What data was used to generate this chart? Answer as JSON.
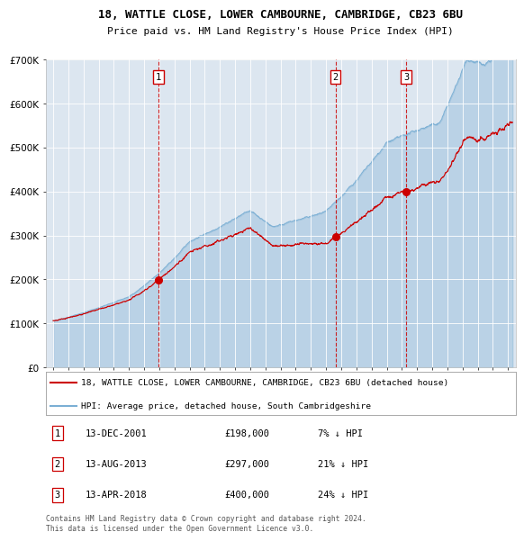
{
  "title_line1": "18, WATTLE CLOSE, LOWER CAMBOURNE, CAMBRIDGE, CB23 6BU",
  "title_line2": "Price paid vs. HM Land Registry's House Price Index (HPI)",
  "legend_label_red": "18, WATTLE CLOSE, LOWER CAMBOURNE, CAMBRIDGE, CB23 6BU (detached house)",
  "legend_label_blue": "HPI: Average price, detached house, South Cambridgeshire",
  "transactions": [
    {
      "num": 1,
      "date": "13-DEC-2001",
      "price": 198000,
      "hpi_diff": "7% ↓ HPI",
      "x": 2001.95
    },
    {
      "num": 2,
      "date": "13-AUG-2013",
      "price": 297000,
      "hpi_diff": "21% ↓ HPI",
      "x": 2013.62
    },
    {
      "num": 3,
      "date": "13-APR-2018",
      "price": 400000,
      "hpi_diff": "24% ↓ HPI",
      "x": 2018.28
    }
  ],
  "table_rows": [
    {
      "num": "1",
      "date": "13-DEC-2001",
      "price": "£198,000",
      "hpi": "7% ↓ HPI"
    },
    {
      "num": "2",
      "date": "13-AUG-2013",
      "price": "£297,000",
      "hpi": "21% ↓ HPI"
    },
    {
      "num": "3",
      "date": "13-APR-2018",
      "price": "£400,000",
      "hpi": "24% ↓ HPI"
    }
  ],
  "footer": "Contains HM Land Registry data © Crown copyright and database right 2024.\nThis data is licensed under the Open Government Licence v3.0.",
  "background_color": "#dce6f0",
  "red_color": "#cc0000",
  "blue_color": "#7bafd4",
  "grid_color": "#ffffff",
  "ylim": [
    0,
    700000
  ],
  "xlim_start": 1994.5,
  "xlim_end": 2025.5
}
